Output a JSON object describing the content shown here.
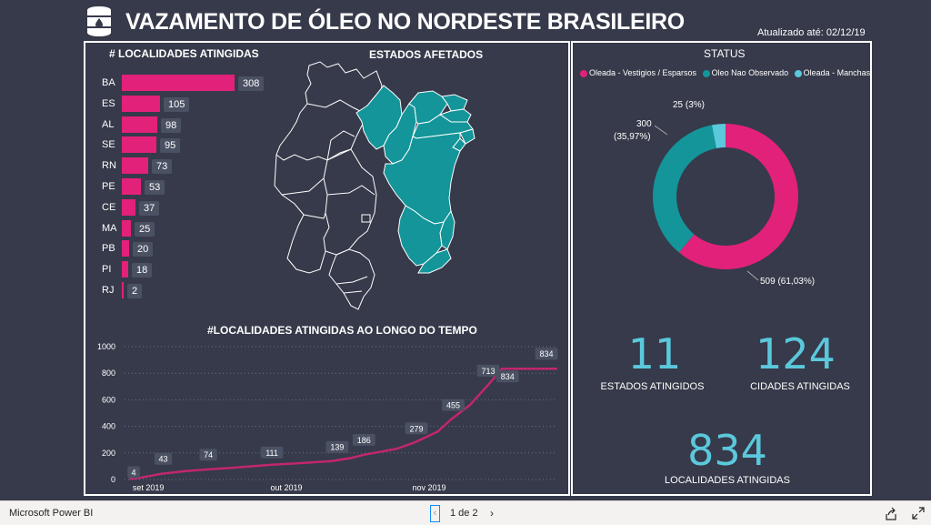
{
  "header": {
    "title": "VAZAMENTO DE ÓLEO NO NORDESTE BRASILEIRO",
    "updated": "Atualizado até: 02/12/19",
    "logo_icon": "oil-barrel-icon"
  },
  "bar_section": {
    "title": "# LOCALIDADES ATINGIDAS",
    "bar_color": "#e2217a"
  },
  "map_section": {
    "title": "ESTADOS AFETADOS",
    "affected_color": "#13959a"
  },
  "line_section": {
    "title": "#LOCALIDADES ATINGIDAS AO LONGO DO TEMPO",
    "line_color": "#c2266f"
  },
  "status": {
    "title": "STATUS",
    "legend": [
      {
        "label": "Oleada - Vestigios / Esparsos",
        "color": "#e2217a"
      },
      {
        "label": "Oleo Nao Observado",
        "color": "#13959a"
      },
      {
        "label": "Oleada - Manchas",
        "color": "#5bc8dc"
      }
    ],
    "labels": {
      "manchas": "25 (3%)",
      "nao_observado_1": "300",
      "nao_observado_2": "(35,97%)",
      "vestigios": "509 (61,03%)"
    }
  },
  "kpis": {
    "estados_value": "11",
    "estados_label": "ESTADOS ATINGIDOS",
    "cidades_value": "124",
    "cidades_label": "CIDADES ATINGIDAS",
    "localidades_value": "834",
    "localidades_label": "LOCALIDADES ATINGIDAS",
    "color": "#5bc8dc"
  },
  "footer": {
    "brand": "Microsoft Power BI",
    "page": "1 de 2",
    "prev_icon": "chevron-left-icon",
    "next_icon": "chevron-right-icon",
    "share_icon": "share-icon",
    "expand_icon": "expand-icon"
  },
  "chart_data": [
    {
      "type": "bar",
      "title": "# LOCALIDADES ATINGIDAS",
      "categories": [
        "BA",
        "ES",
        "AL",
        "SE",
        "RN",
        "PE",
        "CE",
        "MA",
        "PB",
        "PI",
        "RJ"
      ],
      "values": [
        308,
        105,
        98,
        95,
        73,
        53,
        37,
        25,
        20,
        18,
        2
      ]
    },
    {
      "type": "line",
      "title": "#LOCALIDADES ATINGIDAS AO LONGO DO TEMPO",
      "ylim": [
        0,
        1000
      ],
      "yticks": [
        "0",
        "200",
        "400",
        "600",
        "800",
        "1000"
      ],
      "xticks": [
        "set 2019",
        "out 2019",
        "nov 2019"
      ],
      "x_start": "2019-08-30",
      "x_end": "2019-12-02",
      "points": [
        {
          "x": "2019-08-31",
          "y": 4
        },
        {
          "x": "2019-09-02",
          "y": 10
        },
        {
          "x": "2019-09-07",
          "y": 43
        },
        {
          "x": "2019-09-12",
          "y": 62
        },
        {
          "x": "2019-09-16",
          "y": 74
        },
        {
          "x": "2019-09-23",
          "y": 90
        },
        {
          "x": "2019-10-01",
          "y": 111
        },
        {
          "x": "2019-10-08",
          "y": 125
        },
        {
          "x": "2019-10-14",
          "y": 139
        },
        {
          "x": "2019-10-18",
          "y": 160
        },
        {
          "x": "2019-10-21",
          "y": 186
        },
        {
          "x": "2019-10-28",
          "y": 230
        },
        {
          "x": "2019-11-01",
          "y": 279
        },
        {
          "x": "2019-11-06",
          "y": 360
        },
        {
          "x": "2019-11-09",
          "y": 455
        },
        {
          "x": "2019-11-13",
          "y": 560
        },
        {
          "x": "2019-11-17",
          "y": 713
        },
        {
          "x": "2019-11-20",
          "y": 834
        },
        {
          "x": "2019-12-02",
          "y": 834
        }
      ],
      "labeled_points": [
        {
          "x": "2019-08-31",
          "y": 4,
          "label": "4"
        },
        {
          "x": "2019-09-07",
          "y": 43,
          "label": "43"
        },
        {
          "x": "2019-09-16",
          "y": 74,
          "label": "74"
        },
        {
          "x": "2019-10-01",
          "y": 111,
          "label": "111"
        },
        {
          "x": "2019-10-14",
          "y": 139,
          "label": "139"
        },
        {
          "x": "2019-10-21",
          "y": 186,
          "label": "186"
        },
        {
          "x": "2019-11-01",
          "y": 279,
          "label": "279"
        },
        {
          "x": "2019-11-09",
          "y": 455,
          "label": "455"
        },
        {
          "x": "2019-11-17",
          "y": 713,
          "label": "713"
        },
        {
          "x": "2019-11-20",
          "y": 834,
          "label": "834"
        },
        {
          "x": "2019-12-02",
          "y": 834,
          "label": "834"
        }
      ]
    },
    {
      "type": "pie",
      "title": "STATUS",
      "categories": [
        "Oleada - Vestigios / Esparsos",
        "Oleo Nao Observado",
        "Oleada - Manchas"
      ],
      "values": [
        509,
        300,
        25
      ],
      "colors": [
        "#e2217a",
        "#13959a",
        "#5bc8dc"
      ]
    }
  ]
}
